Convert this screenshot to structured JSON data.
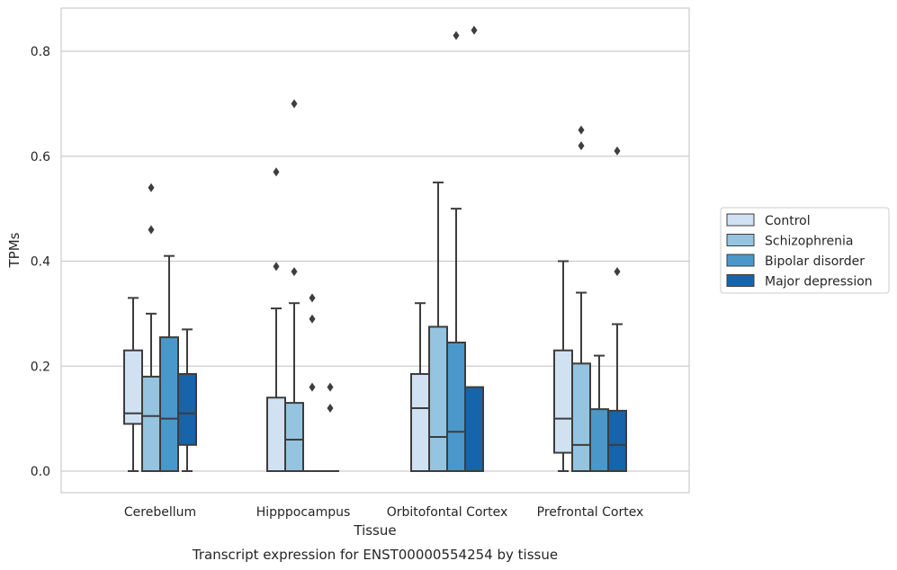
{
  "chart_data": {
    "type": "box",
    "xlabel": "Tissue",
    "ylabel": "TPMs",
    "caption": "Transcript expression for ENST00000554254 by tissue",
    "categories": [
      "Cerebellum",
      "Hipppocampus",
      "Orbitofontal Cortex",
      "Prefrontal Cortex"
    ],
    "ylim": [
      -0.04,
      0.885
    ],
    "yticks": [
      0.0,
      0.2,
      0.4,
      0.6,
      0.8
    ],
    "ytick_labels": [
      "0.0",
      "0.2",
      "0.4",
      "0.6",
      "0.8"
    ],
    "grid": "horizontal",
    "legend_position": "right",
    "series": [
      {
        "name": "Control",
        "color": "#d0e1f2",
        "boxes": [
          {
            "whisker_low": 0.0,
            "q1": 0.09,
            "median": 0.11,
            "q3": 0.23,
            "whisker_high": 0.33,
            "outliers": []
          },
          {
            "whisker_low": 0.0,
            "q1": 0.0,
            "median": 0.0,
            "q3": 0.14,
            "whisker_high": 0.31,
            "outliers": [
              0.39,
              0.57
            ]
          },
          {
            "whisker_low": 0.0,
            "q1": 0.0,
            "median": 0.12,
            "q3": 0.185,
            "whisker_high": 0.32,
            "outliers": []
          },
          {
            "whisker_low": 0.0,
            "q1": 0.035,
            "median": 0.1,
            "q3": 0.23,
            "whisker_high": 0.4,
            "outliers": []
          }
        ]
      },
      {
        "name": "Schizophrenia",
        "color": "#94c4df",
        "boxes": [
          {
            "whisker_low": 0.0,
            "q1": 0.0,
            "median": 0.105,
            "q3": 0.18,
            "whisker_high": 0.3,
            "outliers": [
              0.46,
              0.54
            ]
          },
          {
            "whisker_low": 0.0,
            "q1": 0.0,
            "median": 0.06,
            "q3": 0.13,
            "whisker_high": 0.32,
            "outliers": [
              0.38,
              0.7
            ]
          },
          {
            "whisker_low": 0.0,
            "q1": 0.0,
            "median": 0.065,
            "q3": 0.275,
            "whisker_high": 0.55,
            "outliers": []
          },
          {
            "whisker_low": 0.0,
            "q1": 0.0,
            "median": 0.05,
            "q3": 0.205,
            "whisker_high": 0.34,
            "outliers": [
              0.62,
              0.65
            ]
          }
        ]
      },
      {
        "name": "Bipolar disorder",
        "color": "#4a98c9",
        "boxes": [
          {
            "whisker_low": 0.0,
            "q1": 0.0,
            "median": 0.1,
            "q3": 0.255,
            "whisker_high": 0.41,
            "outliers": []
          },
          {
            "whisker_low": 0.0,
            "q1": 0.0,
            "median": 0.0,
            "q3": 0.0,
            "whisker_high": 0.0,
            "outliers": [
              0.16,
              0.29,
              0.33
            ]
          },
          {
            "whisker_low": 0.0,
            "q1": 0.0,
            "median": 0.075,
            "q3": 0.245,
            "whisker_high": 0.5,
            "outliers": [
              0.83
            ]
          },
          {
            "whisker_low": 0.0,
            "q1": 0.0,
            "median": 0.0,
            "q3": 0.118,
            "whisker_high": 0.22,
            "outliers": []
          }
        ]
      },
      {
        "name": "Major depression",
        "color": "#1764ab",
        "boxes": [
          {
            "whisker_low": 0.0,
            "q1": 0.05,
            "median": 0.11,
            "q3": 0.185,
            "whisker_high": 0.27,
            "outliers": []
          },
          {
            "whisker_low": 0.0,
            "q1": 0.0,
            "median": 0.0,
            "q3": 0.0,
            "whisker_high": 0.0,
            "outliers": [
              0.12,
              0.16
            ]
          },
          {
            "whisker_low": 0.0,
            "q1": 0.0,
            "median": 0.0,
            "q3": 0.16,
            "whisker_high": 0.16,
            "outliers": [
              0.84
            ]
          },
          {
            "whisker_low": 0.0,
            "q1": 0.0,
            "median": 0.05,
            "q3": 0.115,
            "whisker_high": 0.28,
            "outliers": [
              0.38,
              0.61
            ]
          }
        ]
      }
    ]
  }
}
